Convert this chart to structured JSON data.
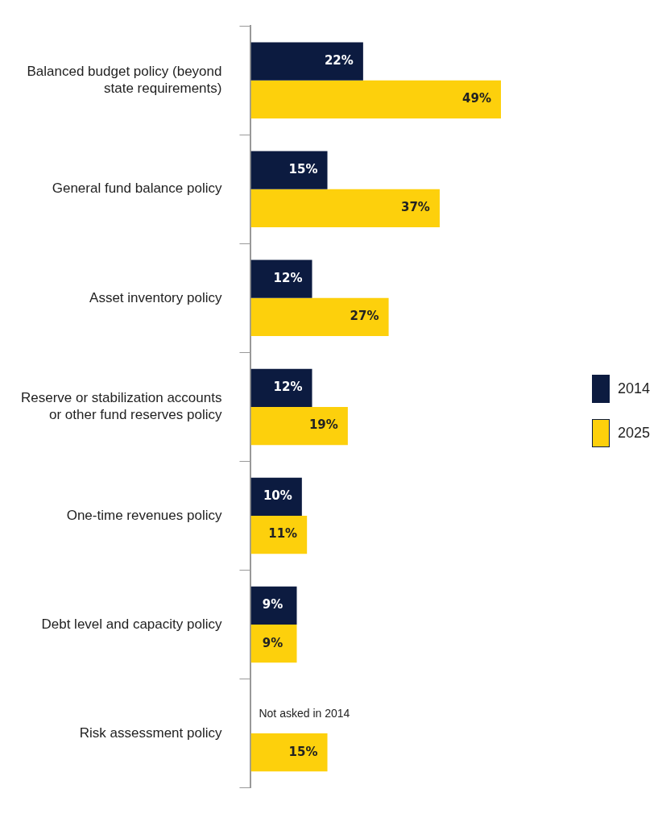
{
  "chart_data": {
    "type": "bar",
    "orientation": "horizontal",
    "categories": [
      "Balanced budget policy (beyond state requirements)",
      "General fund balance policy",
      "Asset inventory policy",
      "Reserve or stabilization accounts or other fund reserves policy",
      "One-time revenues policy",
      "Debt level and capacity policy",
      "Risk assessment policy"
    ],
    "series": [
      {
        "name": "2014",
        "color": "#0c1b40",
        "values": [
          22,
          15,
          12,
          12,
          10,
          9,
          null
        ],
        "value_labels": [
          "22%",
          "15%",
          "12%",
          "12%",
          "10%",
          "9%",
          null
        ]
      },
      {
        "name": "2025",
        "color": "#fdd00c",
        "values": [
          49,
          37,
          27,
          19,
          11,
          9,
          15
        ],
        "value_labels": [
          "49%",
          "37%",
          "27%",
          "19%",
          "11%",
          "9%",
          "15%"
        ]
      }
    ],
    "legend": "right",
    "grid": false,
    "annotations": [
      {
        "text": "Not asked in 2014",
        "y": "Risk assessment policy"
      }
    ]
  }
}
